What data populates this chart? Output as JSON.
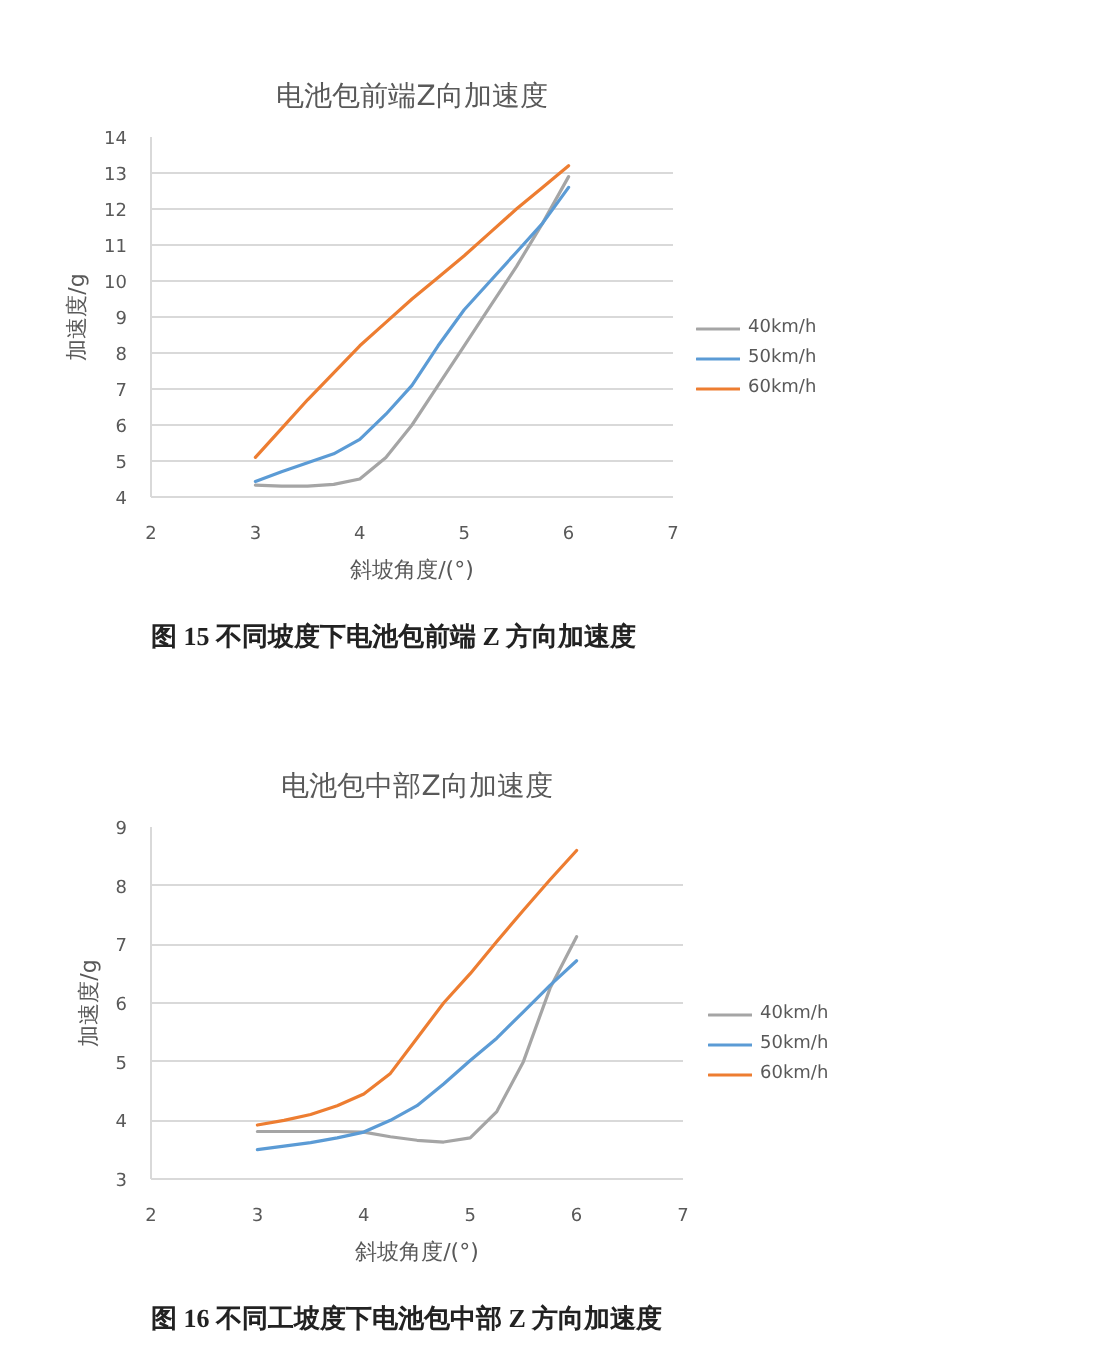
{
  "chart_data": [
    {
      "type": "line",
      "title": "电池包前端Z向加速度",
      "xlabel": "斜坡角度/(°)",
      "ylabel": "加速度/g",
      "x": [
        3,
        3.25,
        3.5,
        3.75,
        4,
        4.25,
        4.5,
        4.75,
        5,
        5.25,
        5.5,
        5.75,
        6
      ],
      "series": [
        {
          "name": "40km/h",
          "color": "#a5a5a5",
          "values": [
            4.33,
            4.3,
            4.3,
            4.35,
            4.5,
            5.1,
            6.0,
            7.1,
            8.2,
            9.3,
            10.4,
            11.6,
            12.9
          ]
        },
        {
          "name": "50km/h",
          "color": "#5b9bd5",
          "values": [
            4.43,
            4.7,
            4.95,
            5.2,
            5.6,
            6.3,
            7.1,
            8.2,
            9.2,
            10.0,
            10.8,
            11.6,
            12.6
          ]
        },
        {
          "name": "60km/h",
          "color": "#ed7d31",
          "values": [
            5.1,
            5.9,
            6.7,
            7.45,
            8.2,
            8.85,
            9.5,
            10.1,
            10.7,
            11.35,
            12.0,
            12.6,
            13.2
          ]
        }
      ],
      "xlim": [
        2,
        7
      ],
      "ylim": [
        4,
        14
      ],
      "xticks": [
        2,
        3,
        4,
        5,
        6,
        7
      ],
      "yticks": [
        4,
        5,
        6,
        7,
        8,
        9,
        10,
        11,
        12,
        13,
        14
      ],
      "grid": "y",
      "legend": "right",
      "annotations": [
        "图 15    不同坡度下电池包前端 Z 方向加速度"
      ]
    },
    {
      "type": "line",
      "title": "电池包中部Z向加速度",
      "xlabel": "斜坡角度/(°)",
      "ylabel": "加速度/g",
      "x": [
        3,
        3.25,
        3.5,
        3.75,
        4,
        4.25,
        4.5,
        4.75,
        5,
        5.25,
        5.5,
        5.75,
        6
      ],
      "series": [
        {
          "name": "40km/h",
          "color": "#a5a5a5",
          "values": [
            3.81,
            3.81,
            3.81,
            3.81,
            3.8,
            3.72,
            3.66,
            3.63,
            3.7,
            4.15,
            5.0,
            6.25,
            7.13
          ]
        },
        {
          "name": "50km/h",
          "color": "#5b9bd5",
          "values": [
            3.5,
            3.56,
            3.62,
            3.7,
            3.8,
            4.0,
            4.25,
            4.62,
            5.02,
            5.4,
            5.85,
            6.3,
            6.72
          ]
        },
        {
          "name": "60km/h",
          "color": "#ed7d31",
          "values": [
            3.92,
            4.0,
            4.1,
            4.25,
            4.45,
            4.8,
            5.4,
            6.0,
            6.5,
            7.05,
            7.58,
            8.1,
            8.6
          ]
        }
      ],
      "xlim": [
        2,
        7
      ],
      "ylim": [
        3,
        9
      ],
      "xticks": [
        2,
        3,
        4,
        5,
        6,
        7
      ],
      "yticks": [
        3,
        4,
        5,
        6,
        7,
        8,
        9
      ],
      "grid": "y",
      "legend": "right",
      "annotations": [
        "图 16    不同工坡度下电池包中部 Z 方向加速度"
      ]
    }
  ]
}
